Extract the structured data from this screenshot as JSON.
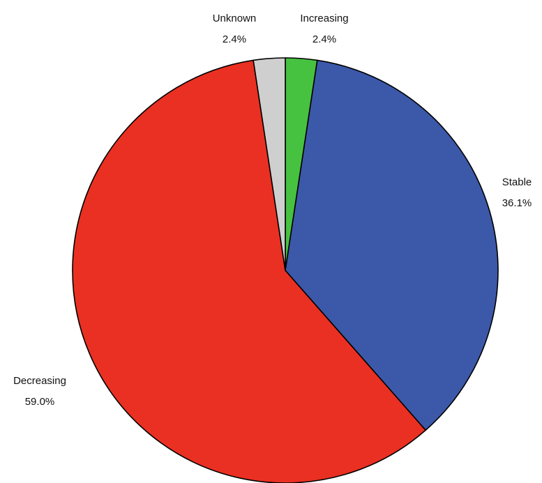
{
  "chart_data": {
    "type": "pie",
    "title": "",
    "slices": [
      {
        "label": "Increasing",
        "value": 2.4,
        "value_label": "2.4%",
        "color": "#47c140"
      },
      {
        "label": "Stable",
        "value": 36.1,
        "value_label": "36.1%",
        "color": "#3c58a9"
      },
      {
        "label": "Decreasing",
        "value": 59.0,
        "value_label": "59.0%",
        "color": "#ea3022"
      },
      {
        "label": "Unknown",
        "value": 2.4,
        "value_label": "2.4%",
        "color": "#cfcfcf"
      }
    ],
    "start": "12 o'clock",
    "direction": "clockwise",
    "edge_color": "#000000"
  }
}
